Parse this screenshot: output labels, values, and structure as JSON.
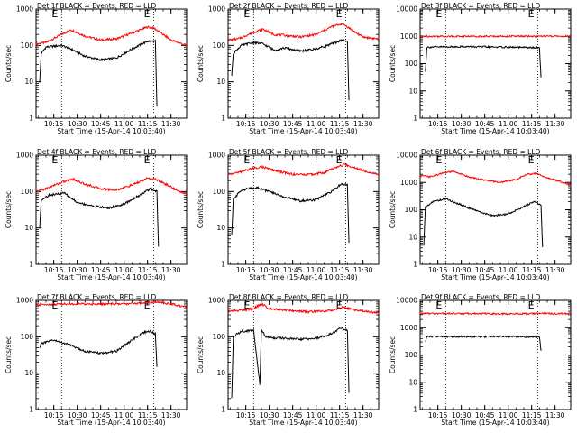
{
  "figure": {
    "time_axis": {
      "start": "10:03:40",
      "end": "11:40:00",
      "start_label": "Start Time (15-Apr-14 10:03:40)"
    },
    "tick_labels": [
      "10:15",
      "10:30",
      "10:45",
      "11:00",
      "11:15",
      "11:30"
    ],
    "ylabel": "Counts/sec",
    "y_tick_labels": [
      "1",
      "10",
      "100",
      "1000",
      "10000"
    ],
    "marker_label": "E",
    "colors": {
      "events": "#000000",
      "lld": "#ff0000"
    }
  },
  "chart_data": [
    {
      "type": "line",
      "title": "Det 1f BLACK = Events, RED = LLD",
      "ylabel": "Counts/sec",
      "xlabel": "Start Time (15-Apr-14 10:03:40)",
      "x_range": [
        "10:03:40",
        "11:40:00"
      ],
      "ylim": [
        1,
        1000
      ],
      "y_scale": "log",
      "markers": [
        "10:20",
        "11:19"
      ],
      "series": [
        {
          "name": "LLD",
          "color": "#ff0000",
          "x": [
            "10:03:40",
            "10:10",
            "10:20",
            "10:26",
            "10:35",
            "10:45",
            "10:55",
            "11:05",
            "11:15",
            "11:19",
            "11:25",
            "11:30",
            "11:40"
          ],
          "y": [
            110,
            120,
            200,
            270,
            180,
            140,
            150,
            220,
            320,
            300,
            200,
            140,
            100
          ]
        },
        {
          "name": "Events",
          "color": "#000000",
          "x": [
            "10:06",
            "10:07",
            "10:10",
            "10:20",
            "10:26",
            "10:35",
            "10:45",
            "10:55",
            "11:05",
            "11:15",
            "11:20",
            "11:21"
          ],
          "y": [
            10,
            60,
            90,
            100,
            80,
            50,
            40,
            45,
            80,
            130,
            130,
            2
          ]
        }
      ]
    },
    {
      "type": "line",
      "title": "Det 2f BLACK = Events, RED = LLD",
      "ylabel": "Counts/sec",
      "xlabel": "Start Time (15-Apr-14 10:03:40)",
      "x_range": [
        "10:03:40",
        "11:40:00"
      ],
      "ylim": [
        1,
        1000
      ],
      "y_scale": "log",
      "markers": [
        "10:20",
        "11:19"
      ],
      "series": [
        {
          "name": "LLD",
          "color": "#ff0000",
          "x": [
            "10:03:40",
            "10:10",
            "10:20",
            "10:26",
            "10:33",
            "10:40",
            "10:50",
            "11:00",
            "11:10",
            "11:17",
            "11:25",
            "11:30",
            "11:40"
          ],
          "y": [
            140,
            150,
            230,
            280,
            200,
            190,
            170,
            200,
            330,
            400,
            230,
            170,
            150
          ]
        },
        {
          "name": "Events",
          "color": "#000000",
          "x": [
            "10:06",
            "10:07",
            "10:12",
            "10:20",
            "10:26",
            "10:33",
            "10:40",
            "10:50",
            "11:00",
            "11:10",
            "11:17",
            "11:20",
            "11:21"
          ],
          "y": [
            15,
            60,
            100,
            120,
            110,
            75,
            85,
            70,
            80,
            110,
            140,
            130,
            3
          ]
        }
      ]
    },
    {
      "type": "line",
      "title": "Det 3f BLACK = Events, RED = LLD",
      "ylabel": "Counts/sec",
      "xlabel": "Start Time (15-Apr-14 10:03:40)",
      "x_range": [
        "10:03:40",
        "11:40:00"
      ],
      "ylim": [
        1,
        10000
      ],
      "y_scale": "log",
      "markers": [
        "10:20",
        "11:19"
      ],
      "series": [
        {
          "name": "LLD",
          "color": "#ff0000",
          "x": [
            "10:03:40",
            "10:20",
            "10:40",
            "11:00",
            "11:20",
            "11:40"
          ],
          "y": [
            1000,
            1000,
            1000,
            1000,
            1000,
            1000
          ]
        },
        {
          "name": "Events",
          "color": "#000000",
          "x": [
            "10:07",
            "10:08",
            "10:30",
            "11:00",
            "11:20",
            "11:21"
          ],
          "y": [
            50,
            400,
            420,
            400,
            380,
            30
          ]
        }
      ]
    },
    {
      "type": "line",
      "title": "Det 4f BLACK = Events, RED = LLD",
      "ylabel": "Counts/sec",
      "xlabel": "Start Time (15-Apr-14 10:03:40)",
      "x_range": [
        "10:03:40",
        "11:40:00"
      ],
      "ylim": [
        1,
        1000
      ],
      "y_scale": "log",
      "markers": [
        "10:20",
        "11:19"
      ],
      "series": [
        {
          "name": "LLD",
          "color": "#ff0000",
          "x": [
            "10:03:40",
            "10:10",
            "10:20",
            "10:27",
            "10:35",
            "10:45",
            "10:55",
            "11:05",
            "11:15",
            "11:20",
            "11:28",
            "11:35",
            "11:40"
          ],
          "y": [
            100,
            120,
            180,
            220,
            160,
            120,
            110,
            150,
            230,
            220,
            150,
            100,
            90
          ]
        },
        {
          "name": "Events",
          "color": "#000000",
          "x": [
            "10:06",
            "10:07",
            "10:12",
            "10:22",
            "10:30",
            "10:40",
            "10:50",
            "11:00",
            "11:10",
            "11:17",
            "11:21",
            "11:22"
          ],
          "y": [
            10,
            60,
            80,
            90,
            50,
            40,
            35,
            45,
            80,
            120,
            100,
            3
          ]
        }
      ]
    },
    {
      "type": "line",
      "title": "Det 5f BLACK = Events, RED = LLD",
      "ylabel": "Counts/sec",
      "xlabel": "Start Time (15-Apr-14 10:03:40)",
      "x_range": [
        "10:03:40",
        "11:40:00"
      ],
      "ylim": [
        1,
        1000
      ],
      "y_scale": "log",
      "markers": [
        "10:20",
        "11:19"
      ],
      "series": [
        {
          "name": "LLD",
          "color": "#ff0000",
          "x": [
            "10:03:40",
            "10:10",
            "10:18",
            "10:25",
            "10:35",
            "10:45",
            "10:55",
            "11:05",
            "11:12",
            "11:18",
            "11:25",
            "11:33",
            "11:40"
          ],
          "y": [
            300,
            330,
            420,
            480,
            360,
            300,
            290,
            330,
            450,
            550,
            450,
            350,
            300
          ]
        },
        {
          "name": "Events",
          "color": "#000000",
          "x": [
            "10:06",
            "10:07",
            "10:12",
            "10:22",
            "10:30",
            "10:40",
            "10:50",
            "11:00",
            "11:10",
            "11:16",
            "11:20",
            "11:21"
          ],
          "y": [
            6,
            60,
            110,
            130,
            100,
            70,
            55,
            60,
            100,
            160,
            150,
            4
          ]
        }
      ]
    },
    {
      "type": "line",
      "title": "Det 6f BLACK = Events, RED = LLD",
      "ylabel": "Counts/sec",
      "xlabel": "Start Time (15-Apr-14 10:03:40)",
      "x_range": [
        "10:03:40",
        "11:40:00"
      ],
      "ylim": [
        1,
        10000
      ],
      "y_scale": "log",
      "markers": [
        "10:20",
        "11:19"
      ],
      "series": [
        {
          "name": "LLD",
          "color": "#ff0000",
          "x": [
            "10:03:40",
            "10:10",
            "10:18",
            "10:25",
            "10:35",
            "10:45",
            "10:55",
            "11:05",
            "11:12",
            "11:18",
            "11:25",
            "11:33",
            "11:40"
          ],
          "y": [
            1800,
            1600,
            2200,
            2500,
            1600,
            1200,
            1000,
            1300,
            2000,
            2100,
            1500,
            1100,
            800
          ]
        },
        {
          "name": "Events",
          "color": "#000000",
          "x": [
            "10:06",
            "10:07",
            "10:12",
            "10:20",
            "10:30",
            "10:40",
            "10:50",
            "11:00",
            "11:10",
            "11:17",
            "11:21",
            "11:22"
          ],
          "y": [
            5,
            120,
            200,
            250,
            150,
            90,
            60,
            70,
            130,
            200,
            150,
            4
          ]
        }
      ]
    },
    {
      "type": "line",
      "title": "Det 7f BLACK = Events, RED = LLD",
      "ylabel": "Counts/sec",
      "xlabel": "Start Time (15-Apr-14 10:03:40)",
      "x_range": [
        "10:03:40",
        "11:40:00"
      ],
      "ylim": [
        1,
        1000
      ],
      "y_scale": "log",
      "markers": [
        "10:20",
        "11:19"
      ],
      "series": [
        {
          "name": "LLD",
          "color": "#ff0000",
          "x": [
            "10:03:40",
            "10:20",
            "10:40",
            "11:00",
            "11:20",
            "11:30",
            "11:40"
          ],
          "y": [
            750,
            800,
            800,
            800,
            900,
            800,
            650
          ]
        },
        {
          "name": "Events",
          "color": "#000000",
          "x": [
            "10:06",
            "10:07",
            "10:15",
            "10:25",
            "10:35",
            "10:45",
            "10:55",
            "11:05",
            "11:12",
            "11:17",
            "11:20",
            "11:21"
          ],
          "y": [
            50,
            65,
            80,
            60,
            40,
            35,
            40,
            80,
            130,
            140,
            120,
            15
          ]
        }
      ]
    },
    {
      "type": "line",
      "title": "Det 8f BLACK = Events, RED = LLD",
      "ylabel": "Counts/sec",
      "xlabel": "Start Time (15-Apr-14 10:03:40)",
      "x_range": [
        "10:03:40",
        "11:40:00"
      ],
      "ylim": [
        1,
        1000
      ],
      "y_scale": "log",
      "markers": [
        "10:20",
        "11:19"
      ],
      "series": [
        {
          "name": "LLD",
          "color": "#ff0000",
          "x": [
            "10:03:40",
            "10:15",
            "10:20",
            "10:25",
            "10:30",
            "10:40",
            "10:55",
            "11:10",
            "11:17",
            "11:25",
            "11:40"
          ],
          "y": [
            500,
            550,
            600,
            800,
            600,
            550,
            480,
            530,
            650,
            550,
            450
          ]
        },
        {
          "name": "Events",
          "color": "#000000",
          "x": [
            "10:06",
            "10:07",
            "10:12",
            "10:20",
            "10:24",
            "10:25",
            "10:28",
            "10:30",
            "10:40",
            "10:50",
            "11:00",
            "11:10",
            "11:16",
            "11:20",
            "11:21"
          ],
          "y": [
            2,
            100,
            140,
            150,
            5,
            150,
            100,
            95,
            90,
            85,
            90,
            120,
            180,
            150,
            3
          ]
        }
      ]
    },
    {
      "type": "line",
      "title": "Det 9f BLACK = Events, RED = LLD",
      "ylabel": "Counts/sec",
      "xlabel": "Start Time (15-Apr-14 10:03:40)",
      "x_range": [
        "10:03:40",
        "11:40:00"
      ],
      "ylim": [
        1,
        10000
      ],
      "y_scale": "log",
      "markers": [
        "10:20",
        "11:19"
      ],
      "series": [
        {
          "name": "LLD",
          "color": "#ff0000",
          "x": [
            "10:03:40",
            "10:20",
            "10:40",
            "11:00",
            "11:20",
            "11:40"
          ],
          "y": [
            3300,
            3300,
            3300,
            3200,
            3300,
            3300
          ]
        },
        {
          "name": "Events",
          "color": "#000000",
          "x": [
            "10:07",
            "10:08",
            "10:30",
            "11:00",
            "11:20",
            "11:21"
          ],
          "y": [
            300,
            480,
            470,
            470,
            460,
            150
          ]
        }
      ]
    }
  ]
}
